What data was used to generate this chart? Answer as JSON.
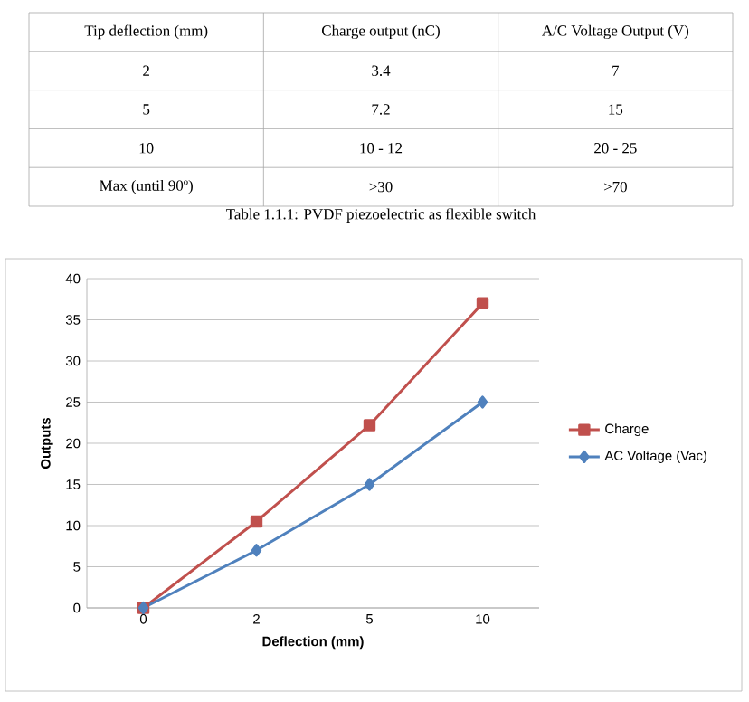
{
  "chart_data": [
    {
      "type": "other",
      "title": "Table 1.1.1: PVDF piezoelectric as flexible switch",
      "categories": [
        "Tip deflection (mm)",
        "Charge output (nC)",
        "A/C Voltage Output (V)"
      ],
      "annotations": [
        "2",
        "3.4",
        "7",
        "5",
        "7.2",
        "15",
        "10",
        "10 - 12",
        "20  - 25",
        "Max (until 90º)",
        ">30",
        ">70"
      ]
    },
    {
      "type": "line",
      "xlabel": "Deflection (mm)",
      "ylabel": "Outputs",
      "categories": [
        "0",
        "2",
        "5",
        "10"
      ],
      "series": [
        {
          "name": "Charge",
          "color": "#c0504d",
          "marker": "square",
          "values": [
            0,
            10.5,
            22.2,
            37
          ]
        },
        {
          "name": "AC Voltage (Vac)",
          "color": "#4f81bd",
          "marker": "diamond",
          "values": [
            0,
            7,
            15,
            25
          ]
        }
      ],
      "ylim": [
        0,
        40
      ],
      "yticks": [
        0,
        5,
        10,
        15,
        20,
        25,
        30,
        35,
        40
      ],
      "grid": "y",
      "legend": "right",
      "line_style": "solid"
    }
  ]
}
